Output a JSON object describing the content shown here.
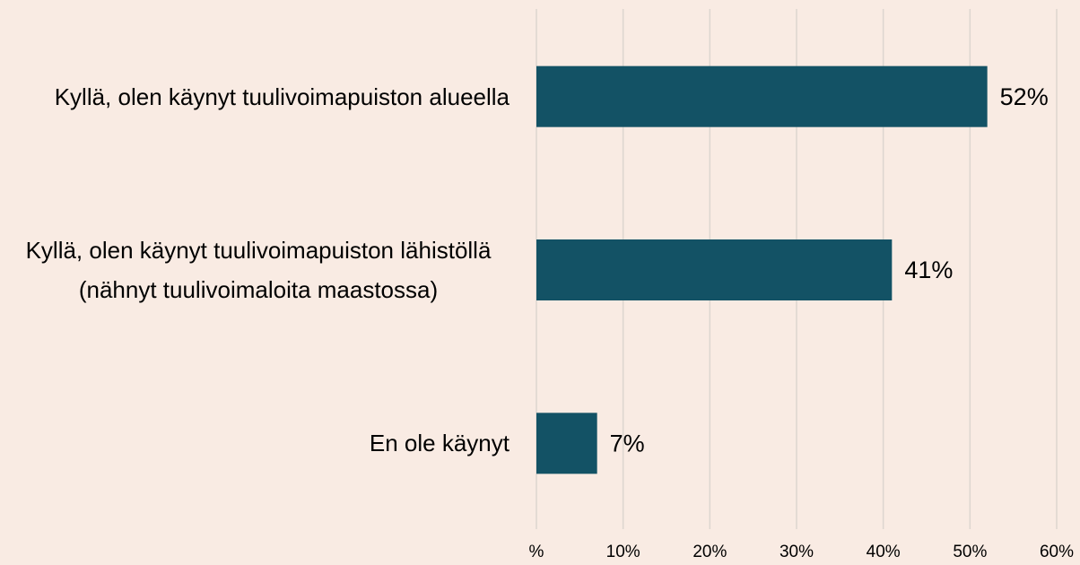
{
  "chart_data": {
    "type": "bar",
    "orientation": "horizontal",
    "categories": [
      "Kyllä, olen käynyt tuulivoimapuiston alueella",
      "Kyllä, olen käynyt tuulivoimapuiston lähistöllä (nähnyt tuulivoimaloita maastossa)",
      "En ole käynyt"
    ],
    "values": [
      52,
      41,
      7
    ],
    "value_labels": [
      "52%",
      "41%",
      "7%"
    ],
    "color": "#135265",
    "xlim": [
      0,
      60
    ],
    "xticks": [
      {
        "value": 0,
        "label": "%"
      },
      {
        "value": 10,
        "label": "10%"
      },
      {
        "value": 20,
        "label": "20%"
      },
      {
        "value": 30,
        "label": "30%"
      },
      {
        "value": 40,
        "label": "40%"
      },
      {
        "value": 50,
        "label": "50%"
      },
      {
        "value": 60,
        "label": "60%"
      }
    ],
    "grid": true
  }
}
